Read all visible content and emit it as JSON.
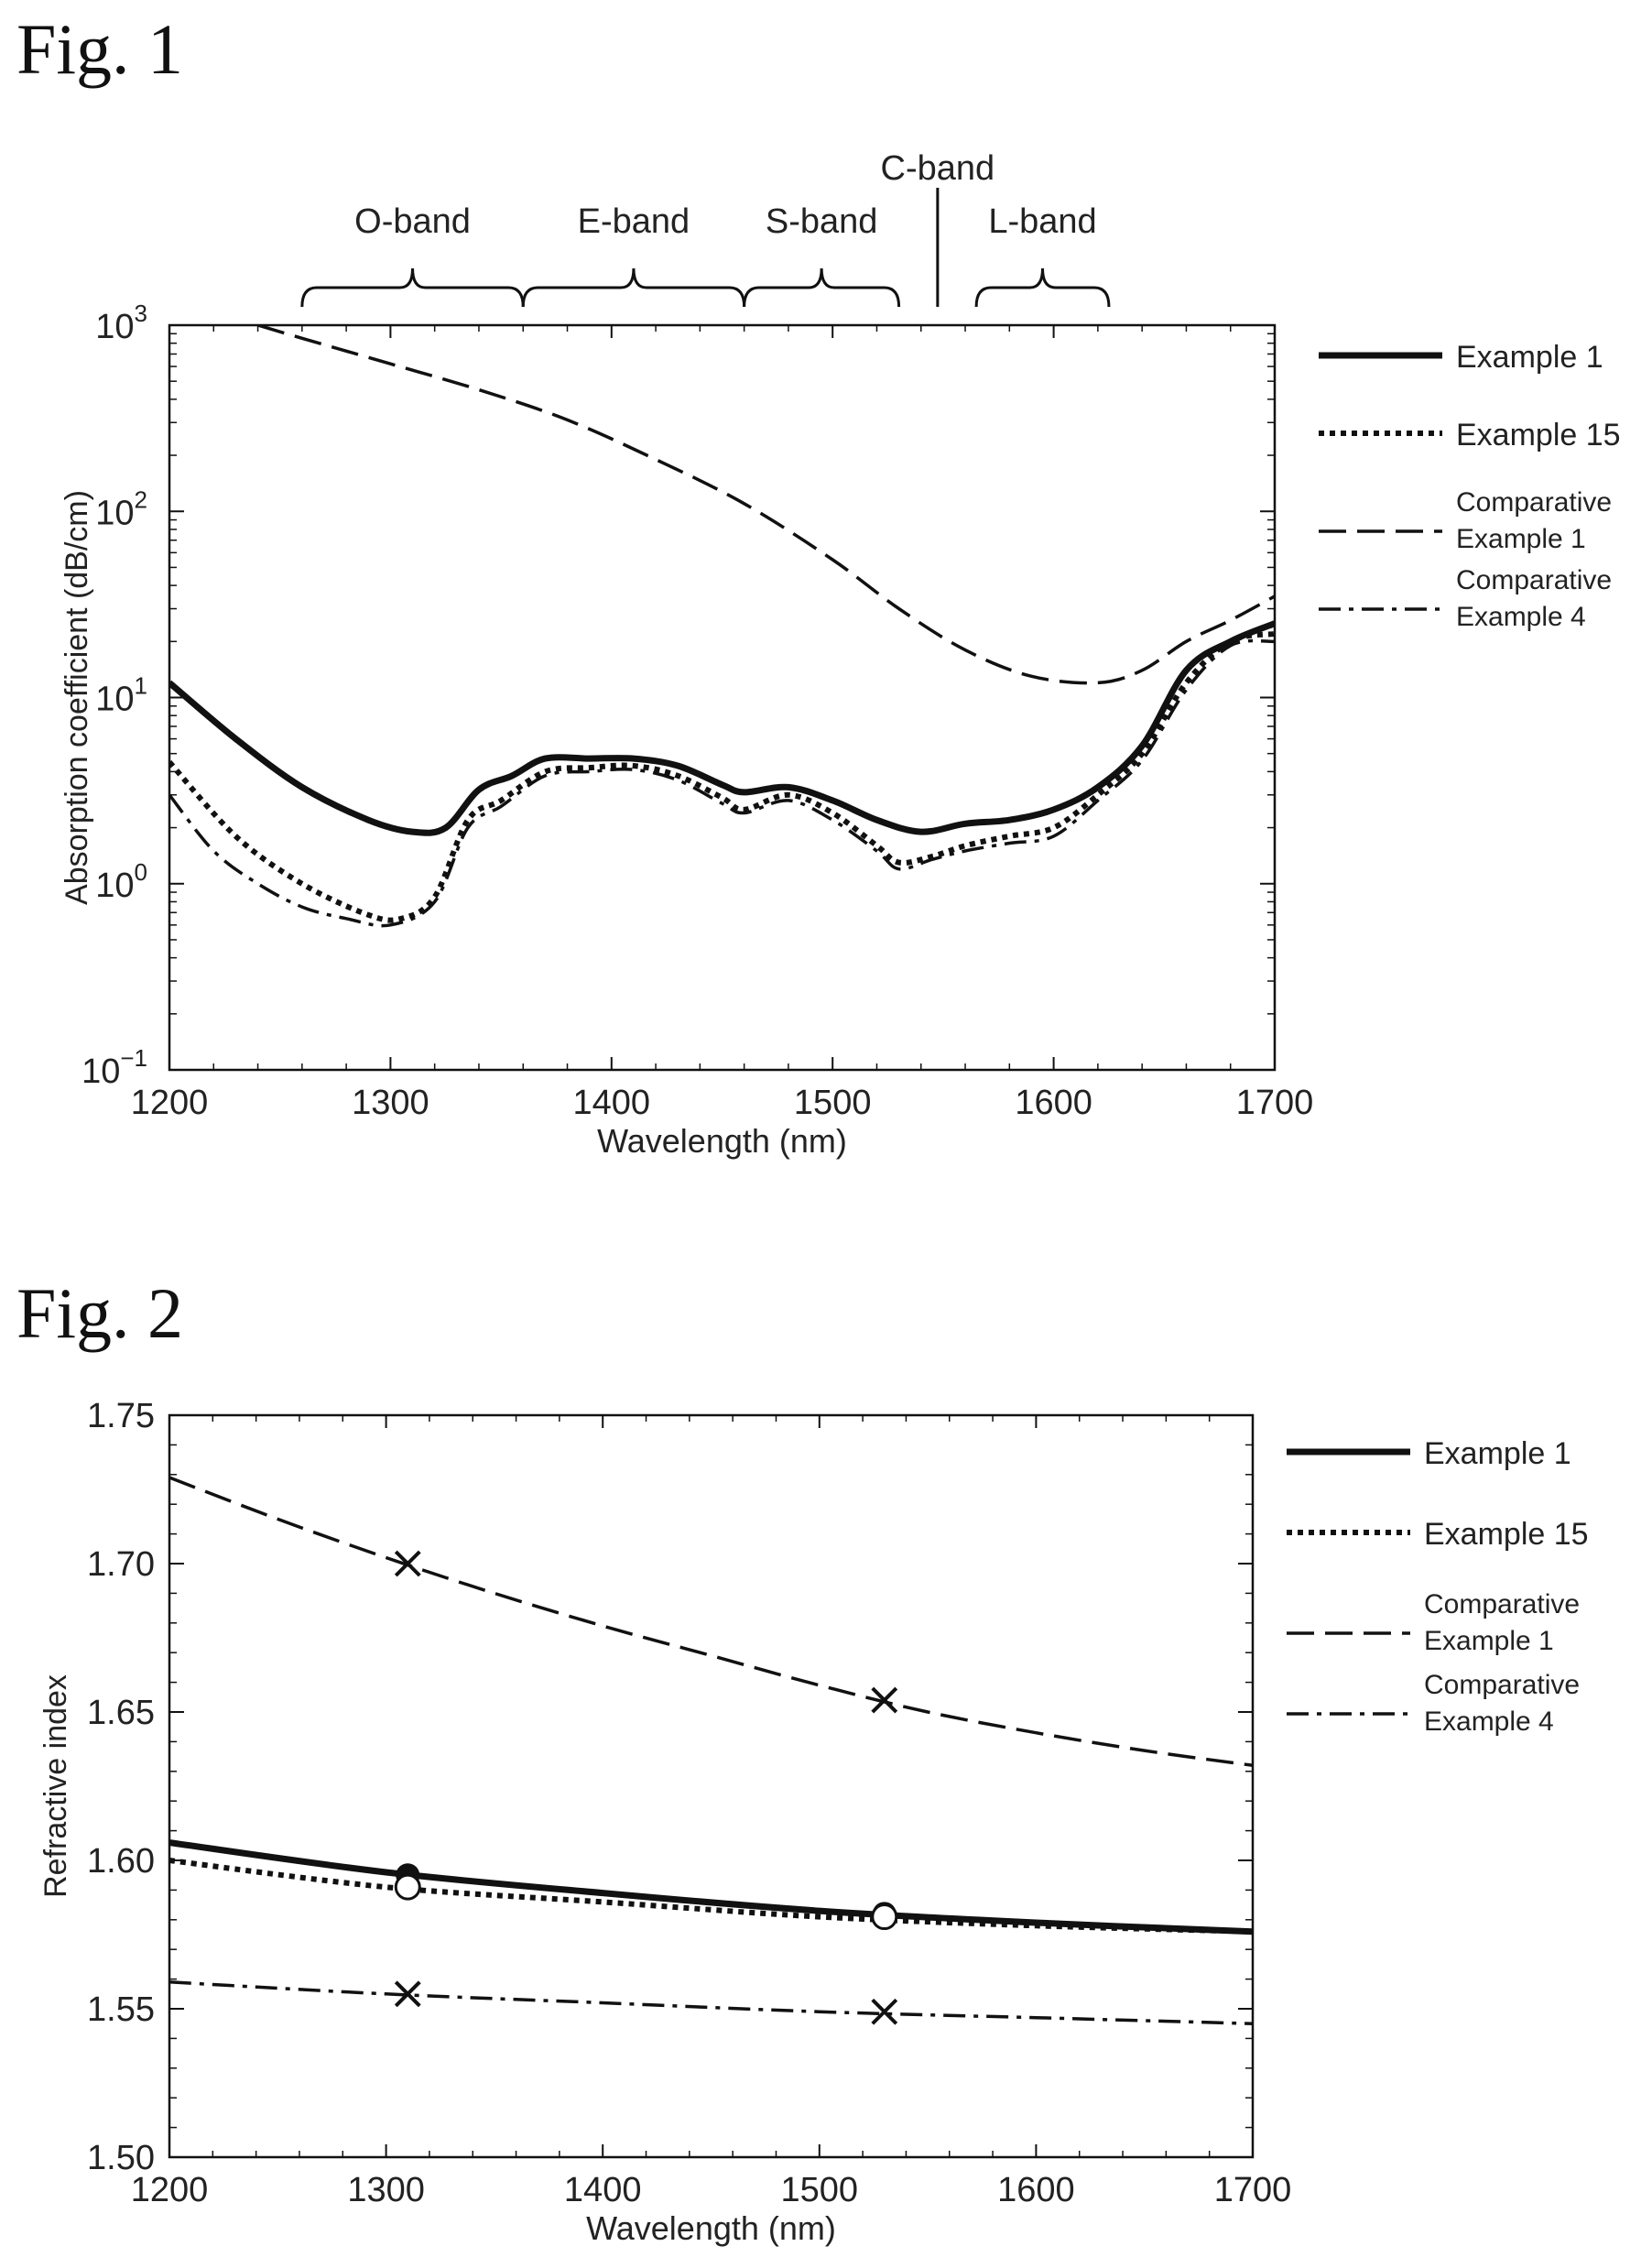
{
  "figure1": {
    "label": "Fig. 1",
    "chart_data": {
      "type": "line",
      "xlabel": "Wavelength (nm)",
      "ylabel": "Absorption coefficient (dB/cm)",
      "xlim": [
        1200,
        1700
      ],
      "ylim": [
        0.1,
        1000
      ],
      "yscale": "log",
      "x_ticks": [
        1200,
        1300,
        1400,
        1500,
        1600,
        1700
      ],
      "y_ticks": [
        {
          "value": 0.1,
          "base": "10",
          "exp": "−1"
        },
        {
          "value": 1,
          "base": "10",
          "exp": "0"
        },
        {
          "value": 10,
          "base": "10",
          "exp": "1"
        },
        {
          "value": 100,
          "base": "10",
          "exp": "2"
        },
        {
          "value": 1000,
          "base": "10",
          "exp": "3"
        }
      ],
      "grid": false,
      "legend": "right",
      "bands": [
        {
          "label": "O-band",
          "start": 1260,
          "end": 1360
        },
        {
          "label": "E-band",
          "start": 1360,
          "end": 1460
        },
        {
          "label": "S-band",
          "start": 1460,
          "end": 1530
        },
        {
          "label": "C-band",
          "start": 1530,
          "end": 1565
        },
        {
          "label": "L-band",
          "start": 1565,
          "end": 1625
        }
      ],
      "series": [
        {
          "name": "Example 1",
          "style": "solid",
          "x": [
            1200,
            1230,
            1260,
            1290,
            1310,
            1325,
            1340,
            1355,
            1370,
            1390,
            1410,
            1430,
            1450,
            1460,
            1480,
            1500,
            1520,
            1540,
            1560,
            1580,
            1600,
            1620,
            1640,
            1660,
            1680,
            1700
          ],
          "y": [
            12,
            6,
            3.3,
            2.2,
            1.9,
            2.0,
            3.2,
            3.8,
            4.7,
            4.7,
            4.7,
            4.3,
            3.4,
            3.1,
            3.3,
            2.8,
            2.2,
            1.9,
            2.1,
            2.2,
            2.5,
            3.3,
            5.5,
            14,
            20,
            25
          ]
        },
        {
          "name": "Example 15",
          "style": "dotted",
          "x": [
            1200,
            1230,
            1260,
            1290,
            1305,
            1320,
            1335,
            1350,
            1370,
            1390,
            1410,
            1430,
            1450,
            1460,
            1480,
            1500,
            1520,
            1530,
            1545,
            1560,
            1580,
            1600,
            1620,
            1640,
            1660,
            1680,
            1700
          ],
          "y": [
            4.5,
            1.8,
            1.0,
            0.68,
            0.65,
            0.85,
            2.2,
            2.8,
            4.0,
            4.2,
            4.3,
            3.8,
            2.9,
            2.5,
            3.0,
            2.4,
            1.6,
            1.3,
            1.4,
            1.6,
            1.8,
            2.0,
            3.0,
            5.0,
            12,
            20,
            22
          ]
        },
        {
          "name": "Comparative Example 1",
          "style": "dashed",
          "x": [
            1240,
            1260,
            1300,
            1340,
            1380,
            1420,
            1460,
            1500,
            1530,
            1560,
            1590,
            1620,
            1640,
            1660,
            1680,
            1700
          ],
          "y": [
            1000,
            850,
            620,
            450,
            310,
            190,
            110,
            55,
            30,
            18,
            13,
            12,
            14,
            20,
            26,
            35
          ]
        },
        {
          "name": "Comparative Example 4",
          "style": "dash-dot",
          "x": [
            1200,
            1220,
            1240,
            1260,
            1280,
            1300,
            1320,
            1335,
            1350,
            1370,
            1390,
            1410,
            1430,
            1450,
            1460,
            1480,
            1500,
            1520,
            1530,
            1545,
            1560,
            1580,
            1600,
            1620,
            1640,
            1660,
            1680,
            1700
          ],
          "y": [
            3.0,
            1.5,
            1.0,
            0.75,
            0.65,
            0.6,
            0.8,
            2.0,
            2.6,
            3.8,
            4.0,
            4.1,
            3.6,
            2.7,
            2.4,
            2.8,
            2.2,
            1.5,
            1.2,
            1.35,
            1.5,
            1.65,
            1.8,
            2.8,
            4.6,
            11,
            19,
            20
          ]
        }
      ],
      "legend_lines": [
        [
          "Example 1"
        ],
        [
          "Example 15"
        ],
        [
          "Comparative",
          "Example 1"
        ],
        [
          "Comparative",
          "Example 4"
        ]
      ]
    }
  },
  "figure2": {
    "label": "Fig. 2",
    "chart_data": {
      "type": "line",
      "xlabel": "Wavelength (nm)",
      "ylabel": "Refractive index",
      "xlim": [
        1200,
        1700
      ],
      "ylim": [
        1.5,
        1.75
      ],
      "x_ticks": [
        1200,
        1300,
        1400,
        1500,
        1600,
        1700
      ],
      "y_ticks": [
        "1.50",
        "1.55",
        "1.60",
        "1.65",
        "1.70",
        "1.75"
      ],
      "grid": false,
      "legend": "right",
      "series": [
        {
          "name": "Example 1",
          "style": "solid",
          "x": [
            1200,
            1300,
            1400,
            1500,
            1600,
            1700
          ],
          "y": [
            1.606,
            1.596,
            1.589,
            1.583,
            1.579,
            1.576
          ],
          "markers": {
            "symbol": "filled-circle",
            "x": [
              1310,
              1530
            ],
            "y": [
              1.595,
              1.582
            ]
          }
        },
        {
          "name": "Example 15",
          "style": "dotted",
          "x": [
            1200,
            1300,
            1400,
            1500,
            1600,
            1700
          ],
          "y": [
            1.6,
            1.591,
            1.586,
            1.581,
            1.578,
            1.576
          ],
          "markers": {
            "symbol": "open-circle",
            "x": [
              1310,
              1530
            ],
            "y": [
              1.591,
              1.581
            ]
          }
        },
        {
          "name": "Comparative Example 1",
          "style": "dashed",
          "x": [
            1200,
            1250,
            1300,
            1350,
            1400,
            1450,
            1500,
            1550,
            1600,
            1650,
            1700
          ],
          "y": [
            1.729,
            1.715,
            1.702,
            1.69,
            1.679,
            1.669,
            1.659,
            1.65,
            1.643,
            1.637,
            1.632
          ],
          "markers": {
            "symbol": "cross",
            "x": [
              1310,
              1530
            ],
            "y": [
              1.7,
              1.654
            ]
          }
        },
        {
          "name": "Comparative Example 4",
          "style": "dash-dot",
          "x": [
            1200,
            1300,
            1400,
            1500,
            1600,
            1700
          ],
          "y": [
            1.559,
            1.555,
            1.552,
            1.549,
            1.547,
            1.545
          ],
          "markers": {
            "symbol": "cross",
            "x": [
              1310,
              1530
            ],
            "y": [
              1.555,
              1.549
            ]
          }
        }
      ],
      "legend_lines": [
        [
          "Example 1"
        ],
        [
          "Example 15"
        ],
        [
          "Comparative",
          "Example 1"
        ],
        [
          "Comparative",
          "Example 4"
        ]
      ]
    }
  }
}
